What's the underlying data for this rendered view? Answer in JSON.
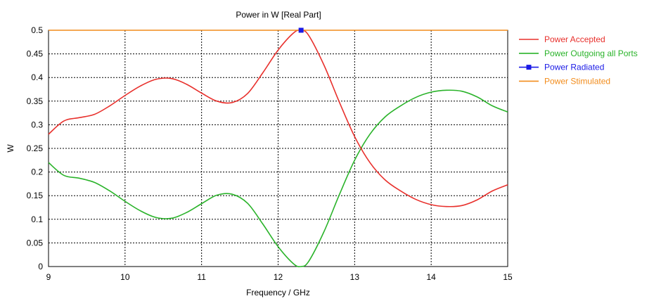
{
  "chart_data": {
    "type": "line",
    "title": "Power in W [Real Part]",
    "xlabel": "Frequency / GHz",
    "ylabel": "W",
    "xlim": [
      9,
      15
    ],
    "ylim": [
      0,
      0.5
    ],
    "x_ticks": [
      9,
      10,
      11,
      12,
      13,
      14,
      15
    ],
    "y_ticks": [
      0,
      0.05,
      0.1,
      0.15,
      0.2,
      0.25,
      0.3,
      0.35,
      0.4,
      0.45,
      0.5
    ],
    "x_tick_labels": [
      "9",
      "10",
      "11",
      "12",
      "13",
      "14",
      "15"
    ],
    "y_tick_labels": [
      "0",
      "0.05",
      "0.1",
      "0.15",
      "0.2",
      "0.25",
      "0.3",
      "0.35",
      "0.4",
      "0.45",
      "0.5"
    ],
    "grid": true,
    "legend_position": "right",
    "series": [
      {
        "name": "Power Accepted",
        "color": "#e8302c",
        "marker": "none",
        "x": [
          9.0,
          9.2,
          9.4,
          9.6,
          9.8,
          10.0,
          10.2,
          10.4,
          10.6,
          10.8,
          11.0,
          11.2,
          11.4,
          11.6,
          11.8,
          12.0,
          12.2,
          12.3,
          12.4,
          12.6,
          12.8,
          13.0,
          13.2,
          13.4,
          13.6,
          13.8,
          14.0,
          14.2,
          14.4,
          14.6,
          14.8,
          15.0
        ],
        "y": [
          0.28,
          0.308,
          0.315,
          0.322,
          0.34,
          0.362,
          0.382,
          0.396,
          0.398,
          0.386,
          0.367,
          0.35,
          0.347,
          0.366,
          0.41,
          0.458,
          0.494,
          0.5,
          0.489,
          0.426,
          0.348,
          0.275,
          0.22,
          0.183,
          0.16,
          0.142,
          0.131,
          0.127,
          0.129,
          0.141,
          0.16,
          0.173
        ]
      },
      {
        "name": "Power Outgoing all Ports",
        "color": "#2ab32a",
        "marker": "none",
        "x": [
          9.0,
          9.2,
          9.4,
          9.6,
          9.8,
          10.0,
          10.2,
          10.4,
          10.6,
          10.8,
          11.0,
          11.2,
          11.4,
          11.6,
          11.8,
          12.0,
          12.2,
          12.3,
          12.4,
          12.6,
          12.8,
          13.0,
          13.2,
          13.4,
          13.6,
          13.8,
          14.0,
          14.2,
          14.4,
          14.6,
          14.8,
          15.0
        ],
        "y": [
          0.22,
          0.193,
          0.187,
          0.178,
          0.16,
          0.138,
          0.118,
          0.104,
          0.102,
          0.114,
          0.133,
          0.151,
          0.153,
          0.134,
          0.09,
          0.042,
          0.006,
          0.0,
          0.011,
          0.074,
          0.152,
          0.225,
          0.28,
          0.317,
          0.34,
          0.358,
          0.369,
          0.373,
          0.371,
          0.359,
          0.34,
          0.327
        ]
      },
      {
        "name": "Power Radiated",
        "color": "#1a1ae6",
        "marker": "square",
        "x": [
          12.3
        ],
        "y": [
          0.5
        ]
      },
      {
        "name": "Power Stimulated",
        "color": "#f28c1c",
        "marker": "none",
        "x": [
          9.0,
          15.0
        ],
        "y": [
          0.5,
          0.5
        ]
      }
    ]
  }
}
